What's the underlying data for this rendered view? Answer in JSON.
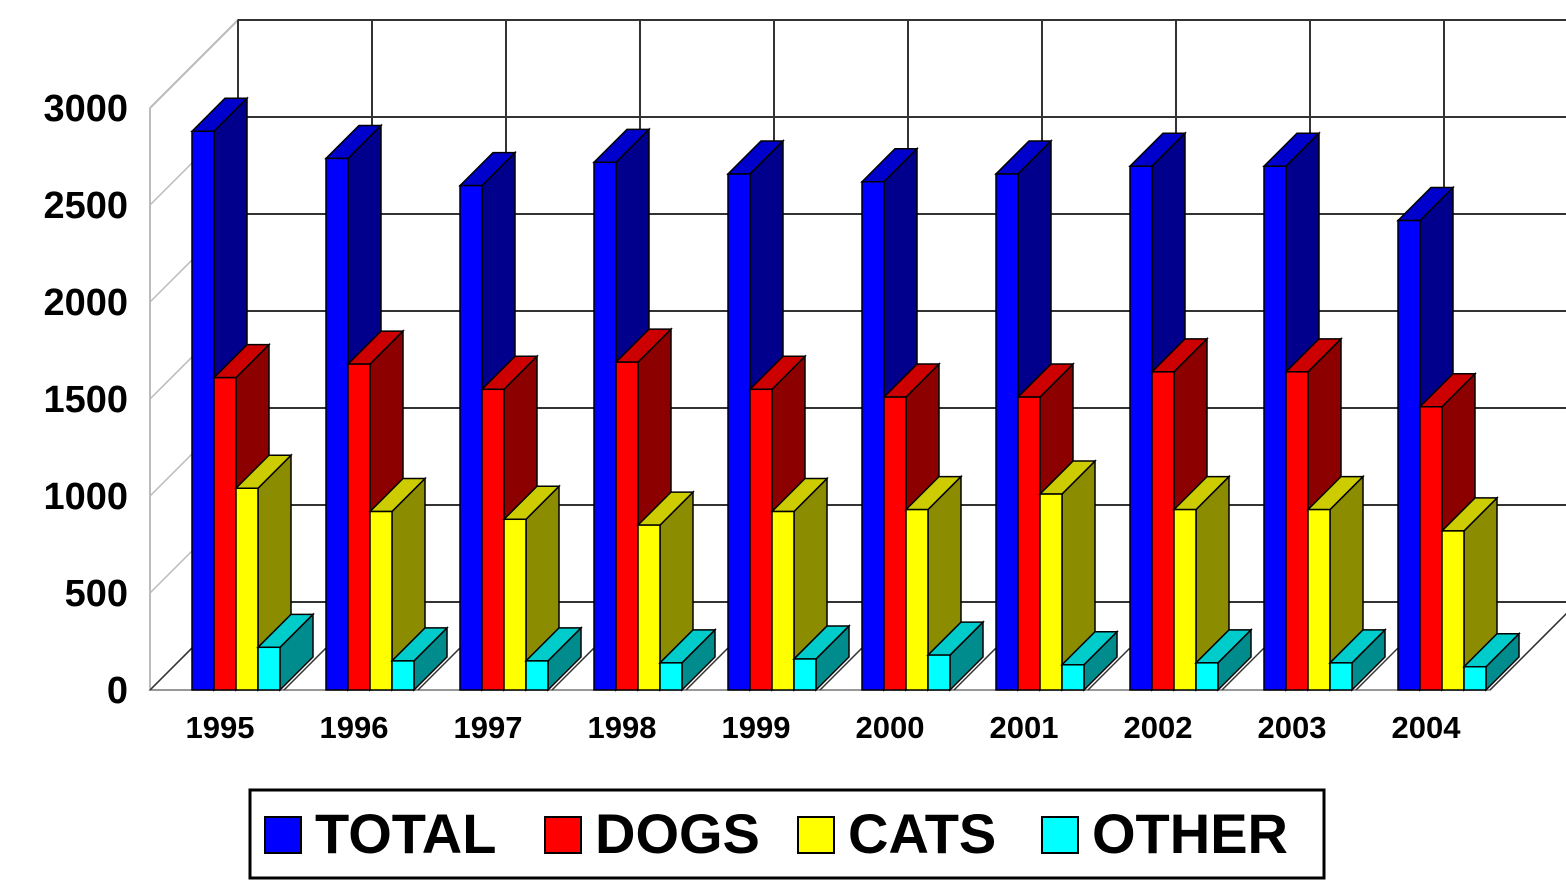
{
  "chart_data": {
    "type": "bar",
    "title": "",
    "xlabel": "",
    "ylabel": "",
    "ylim": [
      0,
      3000
    ],
    "yticks": [
      0,
      500,
      1000,
      1500,
      2000,
      2500,
      3000
    ],
    "grid": true,
    "three_d": true,
    "legend_position": "bottom",
    "categories": [
      "1995",
      "1996",
      "1997",
      "1998",
      "1999",
      "2000",
      "2001",
      "2002",
      "2003",
      "2004"
    ],
    "series": [
      {
        "name": "TOTAL",
        "color": "#0000FF",
        "values": [
          2880,
          2740,
          2600,
          2720,
          2660,
          2620,
          2660,
          2700,
          2700,
          2420
        ]
      },
      {
        "name": "DOGS",
        "color": "#FF0000",
        "values": [
          1610,
          1680,
          1550,
          1690,
          1550,
          1510,
          1510,
          1640,
          1640,
          1460
        ]
      },
      {
        "name": "CATS",
        "color": "#FFFF00",
        "values": [
          1040,
          920,
          880,
          850,
          920,
          930,
          1010,
          930,
          930,
          820
        ]
      },
      {
        "name": "OTHER",
        "color": "#00FFFF",
        "values": [
          220,
          150,
          150,
          140,
          160,
          180,
          130,
          140,
          140,
          120
        ]
      }
    ]
  }
}
